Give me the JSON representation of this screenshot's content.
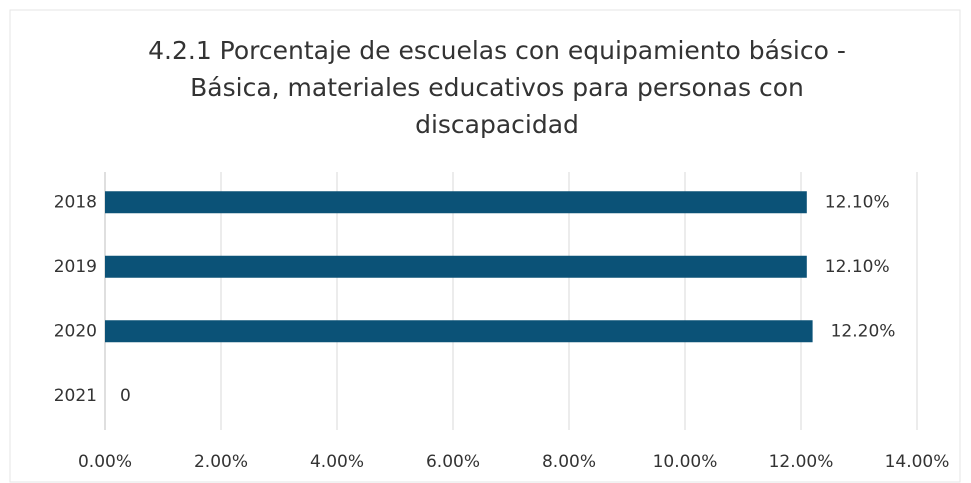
{
  "chart_data": {
    "type": "hbar",
    "title": "4.2.1 Porcentaje de escuelas con equipamiento básico - Básica, materiales educativos para personas con discapacidad",
    "categories": [
      "2018",
      "2019",
      "2020",
      "2021"
    ],
    "values": [
      12.1,
      12.1,
      12.2,
      0
    ],
    "value_labels": [
      "12.10%",
      "12.10%",
      "12.20%",
      "0"
    ],
    "color": "#0b5277",
    "xlim": [
      0,
      14
    ],
    "xticks": [
      {
        "value": 0,
        "label": "0.00%"
      },
      {
        "value": 2,
        "label": "2.00%"
      },
      {
        "value": 4,
        "label": "4.00%"
      },
      {
        "value": 6,
        "label": "6.00%"
      },
      {
        "value": 8,
        "label": "8.00%"
      },
      {
        "value": 10,
        "label": "10.00%"
      },
      {
        "value": 12,
        "label": "12.00%"
      },
      {
        "value": 14,
        "label": "14.00%"
      }
    ],
    "grid": true
  }
}
